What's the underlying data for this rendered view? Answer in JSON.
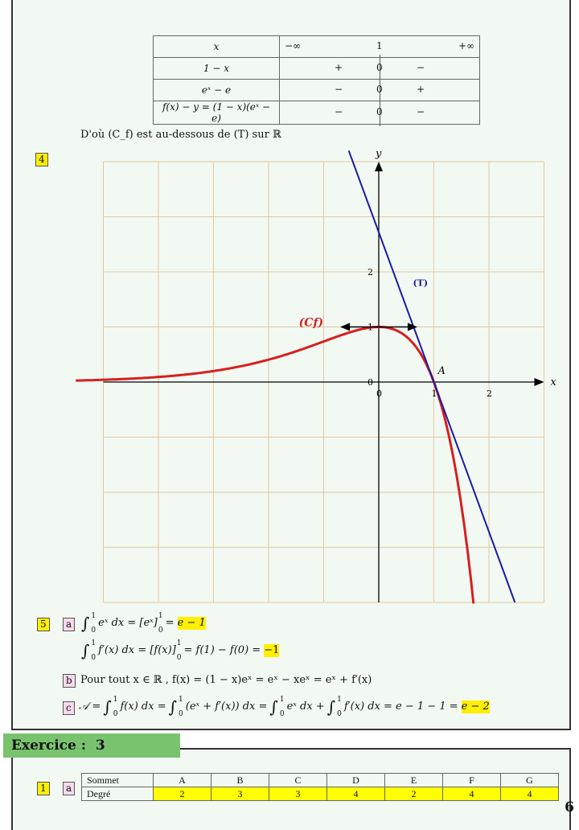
{
  "variation_table": {
    "header": {
      "label": "x",
      "values": [
        "−∞",
        "1",
        "+∞"
      ]
    },
    "rows": [
      {
        "label": "1 − x",
        "left": "+",
        "zero": "0",
        "right": "−"
      },
      {
        "label": "eˣ − e",
        "left": "−",
        "zero": "0",
        "right": "+"
      },
      {
        "label": "f(x) − y = (1 − x)(eˣ − e)",
        "left": "−",
        "zero": "0",
        "right": "−"
      }
    ]
  },
  "conclusion": "D'où (C_f) est au-dessous de (T) sur ℝ",
  "question4": {
    "number": "4"
  },
  "chart_data": {
    "type": "line",
    "xlabel": "x",
    "ylabel": "y",
    "xlim": [
      -5,
      3
    ],
    "ylim": [
      -4,
      4
    ],
    "grid": true,
    "x_ticks": [
      "0",
      "1",
      "2"
    ],
    "y_ticks": [
      "0",
      "1",
      "2"
    ],
    "origin_label": "0",
    "series": [
      {
        "name": "(Cf)",
        "expression": "f(x) = (1 − x)eˣ",
        "color": "#d81e1e"
      },
      {
        "name": "(T)",
        "expression": "y = −e(x − 1)",
        "color": "#1a1aa6"
      }
    ],
    "annotations": [
      {
        "text": "A",
        "point": [
          1,
          0
        ]
      },
      {
        "text": "horizontal tangent",
        "point": [
          0,
          1
        ]
      }
    ]
  },
  "question5": {
    "number": "5",
    "a_label": "a",
    "a_line1": {
      "lhs": "eˣ dx = [eˣ]",
      "result": "e − 1"
    },
    "a_line2": {
      "lhs": "f′(x) dx = [f(x)]",
      "mid": "= f(1) − f(0) =",
      "result": "−1"
    },
    "b_label": "b",
    "b_text": "Pour tout x ∈ ℝ , f(x) = (1 − x)eˣ = eˣ − xeˣ = eˣ + f′(x)",
    "c_label": "c",
    "c_parts": [
      "𝒜 =",
      "f(x) dx =",
      "(eˣ + f′(x)) dx =",
      "eˣ dx +",
      "f′(x) dx = e − 1 − 1 ="
    ],
    "c_result": "e − 2",
    "upper": "1",
    "lower": "0"
  },
  "exercise": {
    "title": "Exercice :",
    "number": "3"
  },
  "question1": {
    "number": "1",
    "a_label": "a"
  },
  "degree_table": {
    "row1_label": "Sommet",
    "vertices": [
      "A",
      "B",
      "C",
      "D",
      "E",
      "F",
      "G"
    ],
    "row2_label": "Degré",
    "degrees": [
      "2",
      "3",
      "3",
      "4",
      "2",
      "4",
      "4"
    ]
  },
  "page_number": "6"
}
